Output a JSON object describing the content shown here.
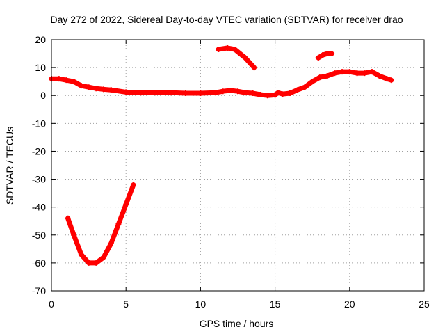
{
  "chart_data": {
    "type": "scatter",
    "title": "Day 272 of 2022, Sidereal Day-to-day VTEC variation (SDTVAR) for receiver drao",
    "xlabel": "GPS time / hours",
    "ylabel": "SDTVAR / TECUs",
    "xlim": [
      0,
      25
    ],
    "ylim": [
      -70,
      20
    ],
    "xticks": [
      0,
      5,
      10,
      15,
      20,
      25
    ],
    "yticks": [
      20,
      10,
      0,
      -10,
      -20,
      -30,
      -40,
      -50,
      -60,
      -70
    ],
    "grid": true,
    "marker": "plus",
    "color": "#ff0000",
    "series": [
      {
        "name": "main",
        "x": [
          0,
          0.5,
          1,
          1.5,
          2,
          2.5,
          3,
          3.5,
          4,
          5,
          6,
          7,
          8,
          9,
          10,
          11,
          11.5,
          12,
          12.5,
          13,
          13.5,
          14,
          14.5,
          15,
          15.2,
          15.5,
          16,
          16.5,
          17,
          17.5,
          18,
          18.5,
          19,
          19.5,
          20,
          20.5,
          21,
          21.5,
          22,
          22.5,
          22.8
        ],
        "y": [
          6,
          6,
          5.5,
          5,
          3.5,
          3,
          2.5,
          2.2,
          2,
          1.2,
          1,
          1,
          1,
          0.8,
          0.8,
          1,
          1.5,
          1.8,
          1.5,
          1,
          0.8,
          0.3,
          0,
          0.2,
          1,
          0.5,
          0.8,
          2,
          3,
          5,
          6.5,
          7,
          8,
          8.5,
          8.5,
          8,
          8,
          8.5,
          7,
          6,
          5.5
        ]
      },
      {
        "name": "trough",
        "x": [
          1.1,
          1.5,
          2,
          2.5,
          3,
          3.5,
          4,
          4.5,
          5,
          5.5
        ],
        "y": [
          -44,
          -50,
          -57,
          -60,
          -60,
          -58,
          -53,
          -46,
          -39,
          -32
        ]
      },
      {
        "name": "arc-upper",
        "x": [
          11.2,
          11.8,
          12.3,
          13,
          13.6
        ],
        "y": [
          16.5,
          17,
          16.5,
          13.5,
          10
        ]
      },
      {
        "name": "upper-right",
        "x": [
          17.9,
          18.2,
          18.5,
          18.8
        ],
        "y": [
          13.5,
          14.5,
          15,
          15
        ]
      }
    ]
  }
}
